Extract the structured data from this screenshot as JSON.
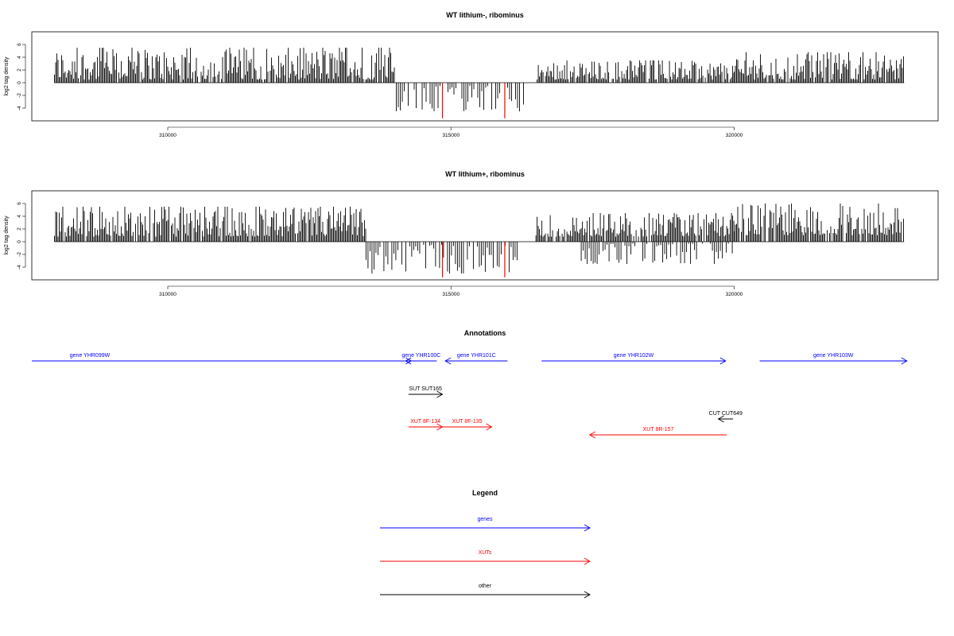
{
  "colors": {
    "genes": "#0000ff",
    "xuts": "#ff0000",
    "other": "#000000",
    "highlight": "#ff0000",
    "bars": "#000000"
  },
  "chart_data": [
    {
      "type": "bar",
      "title": "WT lithium-, ribominus",
      "ylabel": "log2 tag density",
      "xlim": [
        307600,
        323600
      ],
      "ylim": [
        -6,
        8
      ],
      "xticks": [
        310000,
        315000,
        320000
      ],
      "yticks": [
        -4,
        -2,
        0,
        2,
        4,
        6
      ],
      "baseline_extent": [
        308000,
        323000
      ],
      "segments": [
        {
          "x0": 308000,
          "x1": 314000,
          "sign": 1,
          "min": 0.5,
          "max": 5.5
        },
        {
          "x0": 314000,
          "x1": 316300,
          "sign": -1,
          "min": 0.5,
          "max": 4.5
        },
        {
          "x0": 316500,
          "x1": 320000,
          "sign": 1,
          "min": 0.5,
          "max": 3.5
        },
        {
          "x0": 320000,
          "x1": 323000,
          "sign": 1,
          "min": 0.5,
          "max": 4.8
        }
      ],
      "highlights": [
        {
          "x": 314850,
          "value": -5.6
        },
        {
          "x": 315950,
          "value": -5.6
        }
      ]
    },
    {
      "type": "bar",
      "title": "WT lithium+, ribominus",
      "ylabel": "log2 tag density",
      "xlim": [
        307600,
        323600
      ],
      "ylim": [
        -6,
        8
      ],
      "xticks": [
        310000,
        315000,
        320000
      ],
      "yticks": [
        -4,
        -2,
        0,
        2,
        4,
        6
      ],
      "baseline_extent": [
        308000,
        323000
      ],
      "segments": [
        {
          "x0": 308000,
          "x1": 313500,
          "sign": 1,
          "min": 0.8,
          "max": 5.5
        },
        {
          "x0": 313500,
          "x1": 316200,
          "sign": -1,
          "min": 0.5,
          "max": 5.0
        },
        {
          "x0": 316500,
          "x1": 320000,
          "sign": 1,
          "min": 0.8,
          "max": 4.5
        },
        {
          "x0": 317300,
          "x1": 320000,
          "sign": -1,
          "min": 0.3,
          "max": 3.5
        },
        {
          "x0": 320000,
          "x1": 323000,
          "sign": 1,
          "min": 1.0,
          "max": 6.0
        }
      ],
      "highlights": [
        {
          "x": 314850,
          "value": -5.6
        },
        {
          "x": 315950,
          "value": -5.6
        }
      ]
    }
  ],
  "annotations": {
    "title": "Annotations",
    "tracks": [
      {
        "label": "gene YHR099W",
        "kind": "genes",
        "start": 307600,
        "end": 314300,
        "row": 0
      },
      {
        "label": "gene YHR100C",
        "kind": "genes",
        "start": 314750,
        "end": 314200,
        "row": 0
      },
      {
        "label": "gene YHR101C",
        "kind": "genes",
        "start": 316000,
        "end": 314900,
        "row": 0
      },
      {
        "label": "gene YHR102W",
        "kind": "genes",
        "start": 316600,
        "end": 319850,
        "row": 0
      },
      {
        "label": "gene YHR103W",
        "kind": "genes",
        "start": 320450,
        "end": 323050,
        "row": 0
      },
      {
        "label": "SUT SUT165",
        "kind": "other",
        "start": 314250,
        "end": 314850,
        "row": 1
      },
      {
        "label": "CUT CUT649",
        "kind": "other",
        "start": 319980,
        "end": 319720,
        "row": 2
      },
      {
        "label": "XUT 8F-134",
        "kind": "xuts",
        "start": 314250,
        "end": 314850,
        "row": 3
      },
      {
        "label": "XUT 8F-135",
        "kind": "xuts",
        "start": 314850,
        "end": 315720,
        "row": 3
      },
      {
        "label": "XUT 8R-157",
        "kind": "xuts",
        "start": 319870,
        "end": 317450,
        "row": 4
      }
    ]
  },
  "legend": {
    "title": "Legend",
    "items": [
      {
        "label": "genes",
        "kind": "genes"
      },
      {
        "label": "XUTs",
        "kind": "xuts"
      },
      {
        "label": "other",
        "kind": "other"
      }
    ]
  }
}
